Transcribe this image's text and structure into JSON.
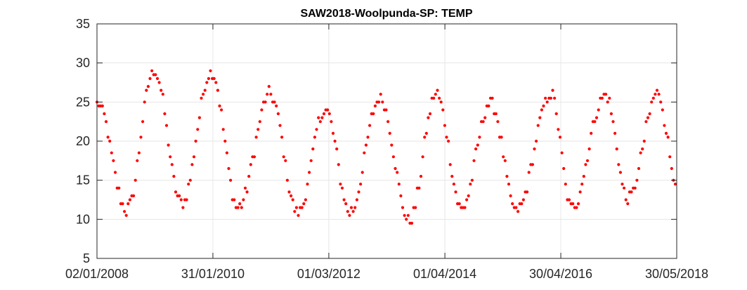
{
  "chart_data": {
    "type": "scatter",
    "title": "SAW2018-Woolpunda-SP: TEMP",
    "xlabel": "",
    "ylabel": "",
    "x_axis": {
      "type": "date",
      "range": [
        "2008-01-02",
        "2018-05-30"
      ],
      "ticks": [
        "2008-01-02",
        "2010-01-31",
        "2012-03-01",
        "2014-04-01",
        "2016-04-30",
        "2018-05-30"
      ],
      "tick_labels": [
        "02/01/2008",
        "31/01/2010",
        "01/03/2012",
        "01/04/2014",
        "30/04/2016",
        "30/05/2018"
      ]
    },
    "y_axis": {
      "range": [
        5,
        35
      ],
      "ticks": [
        5,
        10,
        15,
        20,
        25,
        30,
        35
      ],
      "tick_labels": [
        "5",
        "10",
        "15",
        "20",
        "25",
        "30",
        "35"
      ]
    },
    "grid": true,
    "marker_color": "#ff0000",
    "axis_color": "#262626",
    "grid_color": "#e6e6e6",
    "seasonal_model": {
      "peaks": [
        [
          "2008-01-02",
          25
        ],
        [
          "2009-01-10",
          29
        ],
        [
          "2010-01-20",
          29
        ],
        [
          "2011-02-10",
          26
        ],
        [
          "2012-02-05",
          24
        ],
        [
          "2013-01-30",
          25.5
        ],
        [
          "2014-02-05",
          26
        ],
        [
          "2015-01-25",
          25
        ],
        [
          "2016-02-25",
          26
        ],
        [
          "2017-02-15",
          26
        ],
        [
          "2018-01-25",
          26
        ]
      ],
      "troughs": [
        [
          "2008-07-15",
          11.2
        ],
        [
          "2009-07-10",
          12
        ],
        [
          "2010-07-15",
          11.5
        ],
        [
          "2011-08-10",
          10.8
        ],
        [
          "2012-07-20",
          11
        ],
        [
          "2013-08-10",
          9.8
        ],
        [
          "2014-07-20",
          11.5
        ],
        [
          "2015-07-15",
          11
        ],
        [
          "2016-07-10",
          11.5
        ],
        [
          "2017-07-15",
          12.5
        ],
        [
          "2018-05-30",
          15
        ]
      ]
    }
  }
}
